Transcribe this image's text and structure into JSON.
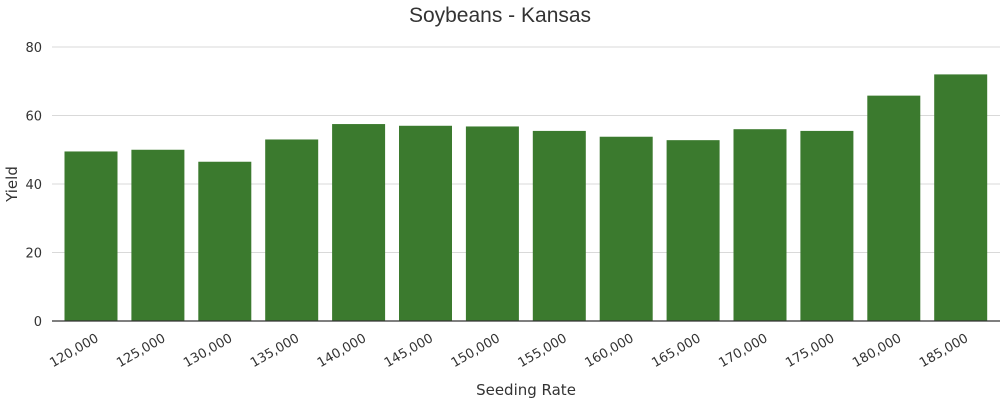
{
  "chart_data": {
    "type": "bar",
    "title": "Soybeans - Kansas",
    "xlabel": "Seeding Rate",
    "ylabel": "Yield",
    "categories": [
      "120,000",
      "125,000",
      "130,000",
      "135,000",
      "140,000",
      "145,000",
      "150,000",
      "155,000",
      "160,000",
      "165,000",
      "170,000",
      "175,000",
      "180,000",
      "185,000"
    ],
    "values": [
      49.5,
      50.0,
      46.5,
      53.0,
      57.5,
      57.0,
      56.8,
      55.5,
      53.8,
      52.8,
      56.0,
      55.5,
      65.8,
      72.0
    ],
    "ylim": [
      0,
      80
    ],
    "yticks": [
      0,
      20,
      40,
      60,
      80
    ],
    "grid": true,
    "bar_color": "#3b7a2e"
  }
}
